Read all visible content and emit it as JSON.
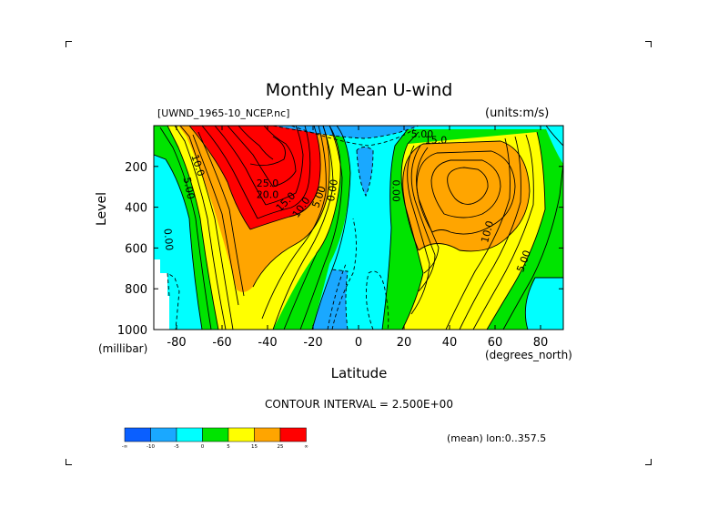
{
  "figure": {
    "title": "Monthly Mean U-wind",
    "dataset_label": "[UWND_1965-10_NCEP.nc]",
    "units_label": "(units:m/s)",
    "contour_interval_label": "CONTOUR INTERVAL = 2.500E+00",
    "mean_label": "(mean) lon:0..357.5"
  },
  "chart_data": {
    "type": "heatmap",
    "title": "Monthly Mean U-wind",
    "xlabel": "Latitude",
    "x_unit_label": "(degrees_north)",
    "ylabel": "Level",
    "y_unit_label": "(millibar)",
    "xlim": [
      -90,
      90
    ],
    "ylim": [
      1000,
      0
    ],
    "x_ticks": [
      -80,
      -60,
      -40,
      -20,
      0,
      20,
      40,
      60,
      80
    ],
    "x_tick_labels": [
      "-80",
      "-60",
      "-40",
      "-20",
      "0",
      "20",
      "40",
      "60",
      "80"
    ],
    "y_ticks": [
      200,
      400,
      600,
      800,
      1000
    ],
    "y_tick_labels": [
      "200",
      "400",
      "600",
      "800",
      "1000"
    ],
    "contour_interval": 2.5,
    "contour_labels": [
      {
        "text": "10.0",
        "lat": -72,
        "lev": 200,
        "rot": 72
      },
      {
        "text": "5.00",
        "lat": -76,
        "lev": 310,
        "rot": 78
      },
      {
        "text": "0.00",
        "lat": -85,
        "lev": 560,
        "rot": 85
      },
      {
        "text": "25.0",
        "lat": -40,
        "lev": 300,
        "rot": 0
      },
      {
        "text": "20.0",
        "lat": -40,
        "lev": 355,
        "rot": 0
      },
      {
        "text": "15.0",
        "lat": -31,
        "lev": 385,
        "rot": -45
      },
      {
        "text": "10.0",
        "lat": -24,
        "lev": 410,
        "rot": -55
      },
      {
        "text": "5.00",
        "lat": -16,
        "lev": 355,
        "rot": -70
      },
      {
        "text": "0.00",
        "lat": -10,
        "lev": 320,
        "rot": -80
      },
      {
        "text": "0.00",
        "lat": 15,
        "lev": 320,
        "rot": 90
      },
      {
        "text": "5.00",
        "lat": 28,
        "lev": 58,
        "rot": 0
      },
      {
        "text": "15.0",
        "lat": 34,
        "lev": 88,
        "rot": 0
      },
      {
        "text": "10.0",
        "lat": 58,
        "lev": 525,
        "rot": -75
      },
      {
        "text": "5.00",
        "lat": 74,
        "lev": 670,
        "rot": -70
      }
    ],
    "colorbar": {
      "colors": [
        "#0a5fff",
        "#1aa8ff",
        "#00ffff",
        "#00e400",
        "#ffff00",
        "#ffa500",
        "#ff0000"
      ],
      "tick_labels": [
        "-∞",
        "-10",
        "-5",
        "0",
        "5",
        "15",
        "25",
        "∞"
      ]
    }
  }
}
